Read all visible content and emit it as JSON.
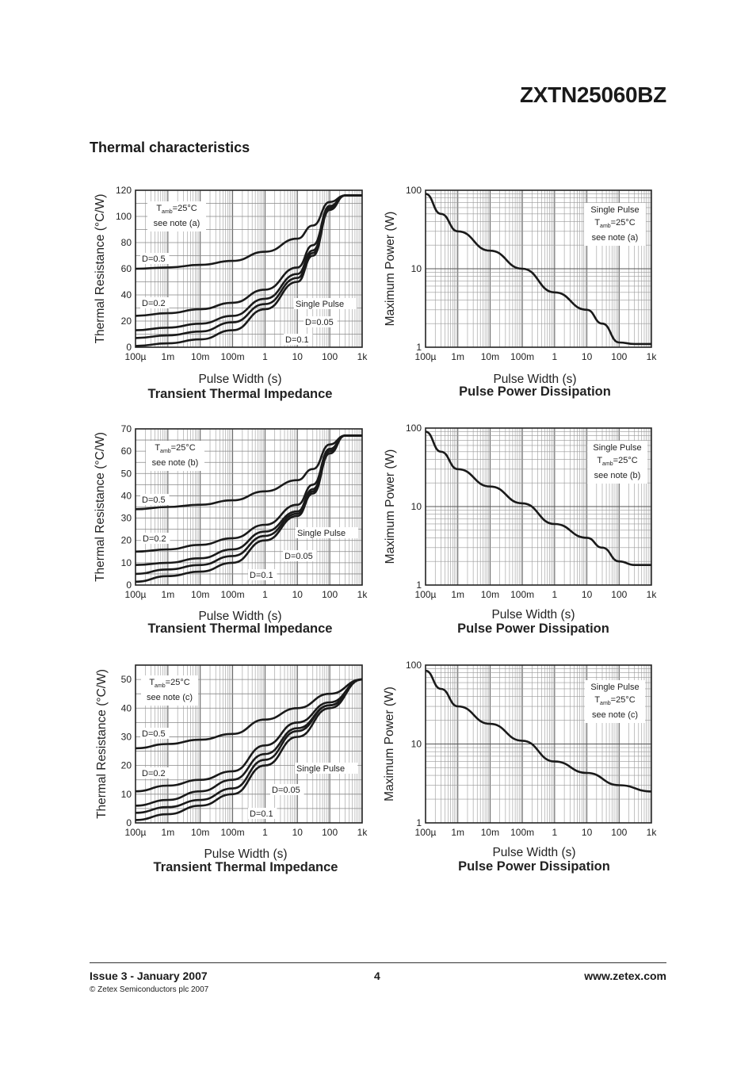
{
  "header": {
    "title": "ZXTN25060BZ"
  },
  "section": {
    "title": "Thermal characteristics"
  },
  "footer": {
    "issue": "Issue 3 - January 2007",
    "page": "4",
    "website": "www.zetex.com",
    "copyright": "© Zetex Semiconductors plc 2007"
  },
  "chart_data": [
    {
      "type": "line",
      "title": "Transient Thermal Impedance",
      "xlabel": "Pulse Width (s)",
      "ylabel": "Thermal Resistance (°C/W)",
      "x_scale": "log",
      "xlim": [
        "100µ",
        "1k"
      ],
      "x_ticks": [
        "100µ",
        "1m",
        "10m",
        "100m",
        "1",
        "10",
        "100",
        "1k"
      ],
      "y_ticks": [
        "0",
        "20",
        "40",
        "60",
        "80",
        "100",
        "120"
      ],
      "ylim": [
        0,
        120
      ],
      "grid": true,
      "note_lines": [
        "T",
        "amb",
        "=25°C",
        "see note (a)"
      ],
      "series": [
        {
          "name": "D=0.5",
          "x": [
            0.0001,
            0.001,
            0.01,
            0.1,
            1,
            10,
            30,
            100,
            300,
            1000
          ],
          "values": [
            60,
            61,
            63,
            66,
            73,
            83,
            93,
            111,
            116,
            116
          ]
        },
        {
          "name": "D=0.2",
          "x": [
            0.0001,
            0.001,
            0.01,
            0.1,
            1,
            10,
            30,
            100,
            300,
            1000
          ],
          "values": [
            24,
            26,
            29,
            34,
            44,
            61,
            78,
            108,
            116,
            116
          ]
        },
        {
          "name": "D=0.1",
          "x": [
            0.0001,
            0.001,
            0.01,
            0.1,
            1,
            10,
            30,
            100,
            300,
            1000
          ],
          "values": [
            13,
            15,
            18,
            24,
            37,
            56,
            74,
            107,
            116,
            116
          ]
        },
        {
          "name": "D=0.05",
          "x": [
            0.0001,
            0.001,
            0.01,
            0.1,
            1,
            10,
            30,
            100,
            300,
            1000
          ],
          "values": [
            7,
            9,
            12,
            19,
            33,
            53,
            72,
            106,
            116,
            116
          ]
        },
        {
          "name": "Single Pulse",
          "x": [
            0.0001,
            0.001,
            0.01,
            0.1,
            1,
            10,
            30,
            100,
            300,
            1000
          ],
          "values": [
            1,
            3,
            6,
            13,
            29,
            50,
            70,
            105,
            116,
            116
          ]
        }
      ],
      "labels": [
        "D=0.5",
        "D=0.2",
        "Single Pulse",
        "D=0.05",
        "D=0.1"
      ]
    },
    {
      "type": "line",
      "title": "Pulse Power Dissipation",
      "xlabel": "Pulse Width (s)",
      "ylabel": "Maximum Power (W)",
      "x_scale": "log",
      "y_scale": "log",
      "xlim": [
        "100µ",
        "1k"
      ],
      "ylim": [
        1,
        100
      ],
      "x_ticks": [
        "100µ",
        "1m",
        "10m",
        "100m",
        "1",
        "10",
        "100",
        "1k"
      ],
      "y_ticks": [
        "1",
        "10",
        "100"
      ],
      "grid": true,
      "note_lines": [
        "Single Pulse",
        "T",
        "amb",
        "=25°C",
        "see note (a)"
      ],
      "series": [
        {
          "name": "Single Pulse",
          "x": [
            0.0001,
            0.0003,
            0.001,
            0.01,
            0.1,
            1,
            10,
            30,
            100,
            300,
            1000
          ],
          "values": [
            90,
            50,
            30,
            17,
            10,
            5,
            3,
            2,
            1.15,
            1.1,
            1.1
          ]
        }
      ]
    },
    {
      "type": "line",
      "title": "Transient Thermal Impedance",
      "xlabel": "Pulse Width (s)",
      "ylabel": "Thermal Resistance (°C/W)",
      "x_scale": "log",
      "xlim": [
        "100µ",
        "1k"
      ],
      "x_ticks": [
        "100µ",
        "1m",
        "10m",
        "100m",
        "1",
        "10",
        "100",
        "1k"
      ],
      "y_ticks": [
        "0",
        "10",
        "20",
        "30",
        "40",
        "50",
        "60",
        "70"
      ],
      "ylim": [
        0,
        70
      ],
      "grid": true,
      "note_lines": [
        "T",
        "amb",
        "=25°C",
        "see note (b)"
      ],
      "series": [
        {
          "name": "D=0.5",
          "x": [
            0.0001,
            0.001,
            0.01,
            0.1,
            1,
            10,
            30,
            100,
            300,
            1000
          ],
          "values": [
            34,
            35,
            36,
            38,
            42,
            47,
            52,
            63,
            67,
            67
          ]
        },
        {
          "name": "D=0.2",
          "x": [
            0.0001,
            0.001,
            0.01,
            0.1,
            1,
            10,
            30,
            100,
            300,
            1000
          ],
          "values": [
            15,
            16,
            18,
            21,
            27,
            36,
            45,
            61,
            67,
            67
          ]
        },
        {
          "name": "D=0.1",
          "x": [
            0.0001,
            0.001,
            0.01,
            0.1,
            1,
            10,
            30,
            100,
            300,
            1000
          ],
          "values": [
            9,
            10,
            12,
            16,
            24,
            33,
            43,
            60,
            67,
            67
          ]
        },
        {
          "name": "D=0.05",
          "x": [
            0.0001,
            0.001,
            0.01,
            0.1,
            1,
            10,
            30,
            100,
            300,
            1000
          ],
          "values": [
            5,
            7,
            9,
            13,
            22,
            32,
            42,
            60,
            67,
            67
          ]
        },
        {
          "name": "Single Pulse",
          "x": [
            0.0001,
            0.001,
            0.01,
            0.1,
            1,
            10,
            30,
            100,
            300,
            1000
          ],
          "values": [
            1.5,
            4,
            6,
            10,
            20,
            31,
            41,
            59,
            67,
            67
          ]
        }
      ],
      "labels": [
        "D=0.5",
        "D=0.2",
        "Single Pulse",
        "D=0.05",
        "D=0.1"
      ]
    },
    {
      "type": "line",
      "title": "Pulse Power Dissipation",
      "xlabel": "Pulse Width (s)",
      "ylabel": "Maximum Power (W)",
      "x_scale": "log",
      "y_scale": "log",
      "xlim": [
        "100µ",
        "1k"
      ],
      "ylim": [
        1,
        100
      ],
      "x_ticks": [
        "100µ",
        "1m",
        "10m",
        "100m",
        "1",
        "10",
        "100",
        "1k"
      ],
      "y_ticks": [
        "1",
        "10",
        "100"
      ],
      "grid": true,
      "note_lines": [
        "Single Pulse",
        "T",
        "amb",
        "=25°C",
        "see note (b)"
      ],
      "series": [
        {
          "name": "Single Pulse",
          "x": [
            0.0001,
            0.0003,
            0.001,
            0.01,
            0.1,
            1,
            10,
            30,
            100,
            300,
            1000
          ],
          "values": [
            90,
            50,
            30,
            18,
            11,
            6,
            4,
            3,
            2,
            1.8,
            1.8
          ]
        }
      ]
    },
    {
      "type": "line",
      "title": "Transient Thermal Impedance",
      "xlabel": "Pulse Width (s)",
      "ylabel": "Thermal Resistance (°C/W)",
      "x_scale": "log",
      "xlim": [
        "100µ",
        "1k"
      ],
      "x_ticks": [
        "100µ",
        "1m",
        "10m",
        "100m",
        "1",
        "10",
        "100",
        "1k"
      ],
      "y_ticks": [
        "0",
        "10",
        "20",
        "30",
        "40",
        "50"
      ],
      "ylim": [
        0,
        55
      ],
      "grid": true,
      "note_lines": [
        "T",
        "amb",
        "=25°C",
        "see note (c)"
      ],
      "series": [
        {
          "name": "D=0.5",
          "x": [
            0.0001,
            0.001,
            0.01,
            0.1,
            1,
            10,
            100,
            1000
          ],
          "values": [
            26,
            27.5,
            29,
            31,
            36,
            40,
            45,
            50
          ]
        },
        {
          "name": "D=0.2",
          "x": [
            0.0001,
            0.001,
            0.01,
            0.1,
            1,
            10,
            100,
            1000
          ],
          "values": [
            11,
            13,
            15,
            18,
            27,
            35,
            42,
            50
          ]
        },
        {
          "name": "D=0.1",
          "x": [
            0.0001,
            0.001,
            0.01,
            0.1,
            1,
            10,
            100,
            1000
          ],
          "values": [
            6,
            8,
            11,
            15,
            24,
            33,
            41,
            50
          ]
        },
        {
          "name": "D=0.05",
          "x": [
            0.0001,
            0.001,
            0.01,
            0.1,
            1,
            10,
            100,
            1000
          ],
          "values": [
            3.5,
            5.5,
            8,
            12,
            22,
            32,
            41,
            50
          ]
        },
        {
          "name": "Single Pulse",
          "x": [
            0.0001,
            0.001,
            0.01,
            0.1,
            1,
            10,
            100,
            1000
          ],
          "values": [
            1,
            3,
            6,
            10,
            20,
            30,
            40,
            50
          ]
        }
      ],
      "labels": [
        "D=0.5",
        "D=0.2",
        "Single Pulse",
        "D=0.05",
        "D=0.1"
      ]
    },
    {
      "type": "line",
      "title": "Pulse Power Dissipation",
      "xlabel": "Pulse Width (s)",
      "ylabel": "Maximum Power (W)",
      "x_scale": "log",
      "y_scale": "log",
      "xlim": [
        "100µ",
        "1k"
      ],
      "ylim": [
        1,
        100
      ],
      "x_ticks": [
        "100µ",
        "1m",
        "10m",
        "100m",
        "1",
        "10",
        "100",
        "1k"
      ],
      "y_ticks": [
        "1",
        "10",
        "100"
      ],
      "grid": true,
      "note_lines": [
        "Single Pulse",
        "T",
        "amb",
        "=25°C",
        "see note (c)"
      ],
      "series": [
        {
          "name": "Single Pulse",
          "x": [
            0.0001,
            0.0003,
            0.001,
            0.01,
            0.1,
            1,
            10,
            100,
            1000
          ],
          "values": [
            85,
            50,
            30,
            18,
            11,
            6,
            4.3,
            3,
            2.5
          ]
        }
      ]
    }
  ]
}
